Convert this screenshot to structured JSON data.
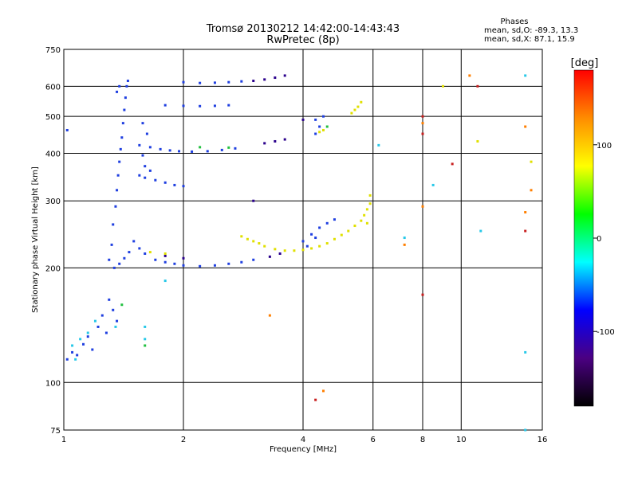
{
  "chart_data": {
    "type": "scatter",
    "title": "Tromsø 20130212 14:42:00-14:43:43",
    "subtitle": "RwPretec (8p)",
    "xlabel": "Frequency [MHz]",
    "ylabel": "Stationary phase Virtual Height [km]",
    "x_scale": "log",
    "y_scale": "log",
    "xlim": [
      1,
      16
    ],
    "ylim": [
      75,
      750
    ],
    "x_ticks": [
      1,
      2,
      4,
      6,
      8,
      10,
      16
    ],
    "y_ticks": [
      75,
      100,
      200,
      300,
      400,
      500,
      600,
      750
    ],
    "grid": true,
    "phase_stats": {
      "heading": "Phases",
      "line_o": "mean, sd,O: -89.3, 13.3",
      "line_x": "mean, sd,X:  87.1, 15.9"
    },
    "colorbar": {
      "label": "[deg]",
      "min": -180,
      "max": 180,
      "ticks": [
        100,
        0,
        -100
      ],
      "colors": [
        "#000000",
        "#4b0082",
        "#0000ff",
        "#00ffff",
        "#00ff00",
        "#ffff00",
        "#ff8c00",
        "#ff0000"
      ]
    },
    "series": [
      {
        "color": "#1f3fe0",
        "points": [
          [
            1.02,
            115
          ],
          [
            1.05,
            120
          ],
          [
            1.08,
            118
          ],
          [
            1.12,
            126
          ],
          [
            1.15,
            132
          ],
          [
            1.18,
            122
          ],
          [
            1.22,
            140
          ],
          [
            1.25,
            150
          ],
          [
            1.28,
            135
          ],
          [
            1.3,
            165
          ],
          [
            1.33,
            155
          ],
          [
            1.36,
            145
          ],
          [
            1.3,
            210
          ],
          [
            1.32,
            230
          ],
          [
            1.33,
            260
          ],
          [
            1.35,
            290
          ],
          [
            1.36,
            320
          ],
          [
            1.37,
            350
          ],
          [
            1.38,
            380
          ],
          [
            1.39,
            410
          ],
          [
            1.4,
            440
          ],
          [
            1.41,
            480
          ],
          [
            1.42,
            520
          ],
          [
            1.43,
            560
          ],
          [
            1.44,
            600
          ],
          [
            1.45,
            620
          ],
          [
            1.34,
            200
          ],
          [
            1.38,
            205
          ],
          [
            1.42,
            212
          ],
          [
            1.46,
            220
          ],
          [
            1.5,
            235
          ],
          [
            1.55,
            225
          ],
          [
            1.6,
            218
          ],
          [
            1.7,
            210
          ],
          [
            1.8,
            207
          ],
          [
            1.9,
            205
          ],
          [
            2.0,
            203
          ],
          [
            2.2,
            202
          ],
          [
            2.4,
            203
          ],
          [
            2.6,
            205
          ],
          [
            2.8,
            207
          ],
          [
            3.0,
            210
          ],
          [
            1.55,
            420
          ],
          [
            1.65,
            415
          ],
          [
            1.75,
            410
          ],
          [
            1.85,
            407
          ],
          [
            1.95,
            405
          ],
          [
            2.1,
            404
          ],
          [
            2.3,
            405
          ],
          [
            2.5,
            408
          ],
          [
            2.7,
            412
          ],
          [
            1.55,
            350
          ],
          [
            1.6,
            345
          ],
          [
            1.7,
            340
          ],
          [
            1.8,
            335
          ],
          [
            1.9,
            330
          ],
          [
            2.0,
            328
          ],
          [
            1.6,
            370
          ],
          [
            1.65,
            360
          ],
          [
            1.58,
            395
          ],
          [
            1.62,
            450
          ],
          [
            1.58,
            480
          ],
          [
            2.0,
            615
          ],
          [
            2.2,
            612
          ],
          [
            2.4,
            613
          ],
          [
            2.6,
            615
          ],
          [
            2.8,
            618
          ],
          [
            1.8,
            535
          ],
          [
            2.0,
            533
          ],
          [
            2.2,
            532
          ],
          [
            2.4,
            533
          ],
          [
            2.6,
            535
          ],
          [
            4.0,
            235
          ],
          [
            4.2,
            245
          ],
          [
            4.4,
            255
          ],
          [
            4.6,
            262
          ],
          [
            4.8,
            268
          ],
          [
            4.3,
            240
          ],
          [
            4.1,
            228
          ],
          [
            4.3,
            450
          ],
          [
            4.4,
            470
          ],
          [
            4.3,
            490
          ],
          [
            4.5,
            500
          ],
          [
            1.38,
            600
          ],
          [
            1.36,
            580
          ],
          [
            1.02,
            460
          ]
        ]
      },
      {
        "color": "#2a008c",
        "points": [
          [
            3.0,
            620
          ],
          [
            3.2,
            625
          ],
          [
            3.4,
            632
          ],
          [
            3.6,
            640
          ],
          [
            3.2,
            425
          ],
          [
            3.4,
            430
          ],
          [
            3.6,
            435
          ],
          [
            3.0,
            300
          ],
          [
            3.3,
            214
          ],
          [
            3.5,
            218
          ],
          [
            4.0,
            490
          ],
          [
            1.8,
            215
          ],
          [
            2.0,
            212
          ]
        ]
      },
      {
        "color": "#e0e000",
        "points": [
          [
            2.8,
            242
          ],
          [
            2.9,
            238
          ],
          [
            3.0,
            235
          ],
          [
            3.1,
            232
          ],
          [
            3.2,
            228
          ],
          [
            3.4,
            224
          ],
          [
            3.6,
            222
          ],
          [
            3.8,
            222
          ],
          [
            4.0,
            223
          ],
          [
            4.2,
            225
          ],
          [
            4.4,
            228
          ],
          [
            4.6,
            232
          ],
          [
            4.8,
            238
          ],
          [
            5.0,
            244
          ],
          [
            5.2,
            250
          ],
          [
            5.4,
            258
          ],
          [
            5.6,
            266
          ],
          [
            5.7,
            275
          ],
          [
            5.8,
            285
          ],
          [
            5.9,
            295
          ],
          [
            5.9,
            310
          ],
          [
            5.8,
            262
          ],
          [
            5.3,
            510
          ],
          [
            5.4,
            520
          ],
          [
            5.5,
            530
          ],
          [
            5.6,
            545
          ],
          [
            4.4,
            455
          ],
          [
            4.5,
            460
          ],
          [
            1.65,
            220
          ],
          [
            1.8,
            218
          ],
          [
            9.0,
            600
          ],
          [
            11.0,
            430
          ],
          [
            15.0,
            380
          ]
        ]
      },
      {
        "color": "#27c8e8",
        "points": [
          [
            1.05,
            125
          ],
          [
            1.07,
            115
          ],
          [
            1.1,
            130
          ],
          [
            1.15,
            135
          ],
          [
            1.2,
            145
          ],
          [
            1.35,
            140
          ],
          [
            1.6,
            130
          ],
          [
            1.6,
            140
          ],
          [
            6.2,
            420
          ],
          [
            8.5,
            330
          ],
          [
            11.2,
            250
          ],
          [
            14.5,
            640
          ],
          [
            14.5,
            120
          ],
          [
            14.5,
            75
          ],
          [
            1.8,
            185
          ],
          [
            7.2,
            240
          ]
        ]
      },
      {
        "color": "#ff7f00",
        "points": [
          [
            3.3,
            150
          ],
          [
            4.5,
            95
          ],
          [
            7.2,
            230
          ],
          [
            8.0,
            290
          ],
          [
            8.0,
            480
          ],
          [
            10.5,
            640
          ],
          [
            14.5,
            470
          ],
          [
            14.5,
            280
          ],
          [
            15.0,
            320
          ]
        ]
      },
      {
        "color": "#22c040",
        "points": [
          [
            1.6,
            125
          ],
          [
            2.2,
            415
          ],
          [
            2.6,
            414
          ],
          [
            1.4,
            160
          ],
          [
            4.6,
            470
          ]
        ]
      },
      {
        "color": "#c81e1e",
        "points": [
          [
            8.0,
            500
          ],
          [
            8.0,
            450
          ],
          [
            9.5,
            375
          ],
          [
            11.0,
            600
          ],
          [
            14.5,
            250
          ],
          [
            4.3,
            90
          ],
          [
            8.0,
            170
          ]
        ]
      }
    ]
  }
}
